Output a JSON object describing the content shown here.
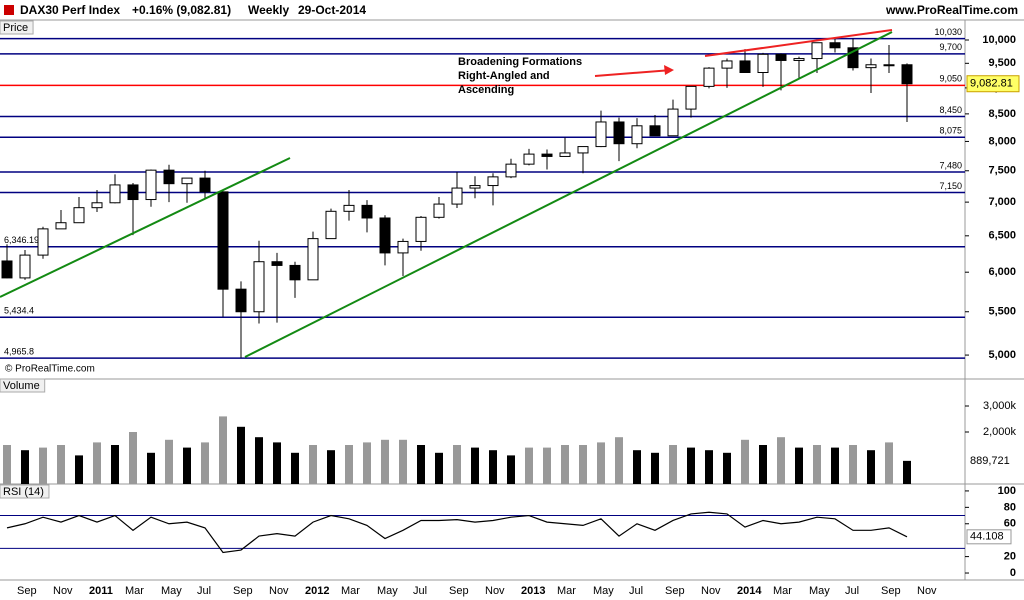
{
  "header": {
    "symbol": "DAX30 Perf Index",
    "change": "+0.16% (9,082.81)",
    "period": "Weekly",
    "date": "29-Oct-2014",
    "site": "www.ProRealTime.com",
    "copyright": "© ProRealTime.com"
  },
  "chart_data": [
    {
      "type": "candlestick",
      "label": "Price",
      "log_scale": true,
      "categories": [
        null,
        "Sep",
        null,
        "Nov",
        null,
        "2011",
        null,
        "Mar",
        null,
        "May",
        null,
        "Jul",
        null,
        "Sep",
        null,
        "Nov",
        null,
        "2012",
        null,
        "Mar",
        null,
        "May",
        null,
        "Jul",
        null,
        "Sep",
        null,
        "Nov",
        null,
        "2013",
        null,
        "Mar",
        null,
        "May",
        null,
        "Jul",
        null,
        "Sep",
        null,
        "Nov",
        null,
        "2014",
        null,
        "Mar",
        null,
        "May",
        null,
        "Jul",
        null,
        "Sep",
        null,
        "Nov"
      ],
      "open": [
        6150,
        5925,
        6230,
        6600,
        6690,
        6915,
        6990,
        7270,
        7040,
        7510,
        7290,
        7380,
        7160,
        5780,
        5500,
        6140,
        6090,
        5900,
        6460,
        6860,
        6950,
        6760,
        6260,
        6420,
        6770,
        6970,
        7220,
        7260,
        7400,
        7610,
        7780,
        7740,
        7800,
        7910,
        8350,
        7960,
        8280,
        8100,
        8590,
        9030,
        9400,
        9550,
        9310,
        9690,
        9560,
        9600,
        9940,
        9830,
        9410,
        9470,
        9470,
        null
      ],
      "high": [
        6380,
        6300,
        6630,
        6880,
        7080,
        7190,
        7440,
        7300,
        7520,
        7600,
        7350,
        7500,
        7170,
        5880,
        6430,
        6260,
        6140,
        6560,
        6900,
        7190,
        7030,
        6800,
        6460,
        6790,
        7080,
        7480,
        7410,
        7460,
        7700,
        7870,
        7860,
        8070,
        7900,
        8560,
        8430,
        8420,
        8480,
        8770,
        9030,
        9420,
        9600,
        9800,
        9720,
        9710,
        9640,
        9940,
        10050,
        10030,
        9600,
        9890,
        9500,
        null
      ],
      "low": [
        5920,
        5900,
        6180,
        6600,
        6690,
        6850,
        6980,
        6510,
        6930,
        7000,
        6990,
        7050,
        5440,
        4970,
        5360,
        5370,
        5670,
        5900,
        6460,
        6720,
        6550,
        6090,
        5950,
        6290,
        6750,
        6910,
        7060,
        6950,
        7380,
        7590,
        7520,
        7740,
        7460,
        7900,
        7660,
        7880,
        8100,
        8100,
        8430,
        8990,
        9000,
        9300,
        9020,
        8950,
        9170,
        9300,
        9730,
        9350,
        8900,
        9300,
        8350,
        null
      ],
      "close": [
        5925,
        6230,
        6600,
        6690,
        6915,
        6990,
        7270,
        7040,
        7510,
        7290,
        7380,
        7160,
        5780,
        5500,
        6140,
        6090,
        5900,
        6460,
        6860,
        6950,
        6760,
        6260,
        6420,
        6770,
        6970,
        7220,
        7260,
        7400,
        7610,
        7780,
        7740,
        7800,
        7910,
        8350,
        7960,
        8280,
        8100,
        8590,
        9030,
        9400,
        9550,
        9310,
        9690,
        9560,
        9600,
        9940,
        9830,
        9410,
        9470,
        9470,
        9082.81,
        null
      ],
      "ylim": [
        4754,
        10404
      ],
      "yticks": [
        {
          "value": 5000,
          "label": "5,000"
        },
        {
          "value": 5500,
          "label": "5,500"
        },
        {
          "value": 6000,
          "label": "6,000"
        },
        {
          "value": 6500,
          "label": "6,500"
        },
        {
          "value": 7000,
          "label": "7,000"
        },
        {
          "value": 7500,
          "label": "7,500"
        },
        {
          "value": 8000,
          "label": "8,000"
        },
        {
          "value": 8500,
          "label": "8,500"
        },
        {
          "value": 9000,
          "label": "9,000"
        },
        {
          "value": 9500,
          "label": "9,500"
        },
        {
          "value": 10000,
          "label": "10,000"
        }
      ],
      "levels": [
        {
          "value": 10030,
          "label": "10,030"
        },
        {
          "value": 9700,
          "label": "9,700"
        },
        {
          "value": 9050,
          "label": "9,050"
        },
        {
          "value": 8450,
          "label": "8,450"
        },
        {
          "value": 8075,
          "label": "8,075"
        },
        {
          "value": 7480,
          "label": "7,480"
        },
        {
          "value": 7150,
          "label": "7,150"
        },
        {
          "value": 6346.19,
          "label": "6,346.19"
        },
        {
          "value": 5434.4,
          "label": "5,434.4"
        },
        {
          "value": 4965.8,
          "label": "4,965.8"
        }
      ],
      "level_colors": [
        "#000080",
        "#000080",
        "#ff0000",
        "#000080",
        "#000080",
        "#000080",
        "#000080",
        "#000080",
        "#000080",
        "#000080"
      ],
      "last": {
        "value": 9082.81,
        "label": "9,082.81"
      },
      "annotation": [
        "Broadening Formations",
        "Right-Angled and",
        "Ascending"
      ]
    },
    {
      "type": "bar",
      "label": "Volume",
      "values": [
        1500000,
        1300000,
        1400000,
        1500000,
        1100000,
        1600000,
        1500000,
        2000000,
        1200000,
        1700000,
        1400000,
        1600000,
        2600000,
        2200000,
        1800000,
        1600000,
        1200000,
        1500000,
        1300000,
        1500000,
        1600000,
        1700000,
        1700000,
        1500000,
        1200000,
        1500000,
        1400000,
        1300000,
        1100000,
        1400000,
        1400000,
        1500000,
        1500000,
        1600000,
        1800000,
        1300000,
        1200000,
        1500000,
        1400000,
        1300000,
        1200000,
        1700000,
        1500000,
        1800000,
        1400000,
        1500000,
        1400000,
        1500000,
        1300000,
        1600000,
        889721,
        null
      ],
      "last": {
        "value": 889721,
        "label": "889,721"
      },
      "ylim": [
        0,
        4000000
      ],
      "yticks": [
        {
          "value": 2000000,
          "label": "2,000k"
        },
        {
          "value": 3000000,
          "label": "3,000k"
        }
      ]
    },
    {
      "type": "line",
      "label": "RSI (14)",
      "values": [
        55,
        60,
        68,
        62,
        70,
        62,
        70,
        52,
        68,
        60,
        62,
        55,
        25,
        28,
        45,
        48,
        45,
        62,
        70,
        66,
        58,
        42,
        52,
        64,
        64,
        65,
        62,
        64,
        68,
        70,
        62,
        60,
        58,
        66,
        45,
        60,
        52,
        64,
        72,
        74,
        72,
        56,
        64,
        60,
        62,
        68,
        66,
        52,
        52,
        55,
        44.108,
        null
      ],
      "ylim": [
        -8.5,
        106
      ],
      "yticks": [
        0,
        20,
        60,
        80,
        100
      ],
      "bands": [
        30,
        70
      ],
      "color": "#000000"
    }
  ]
}
